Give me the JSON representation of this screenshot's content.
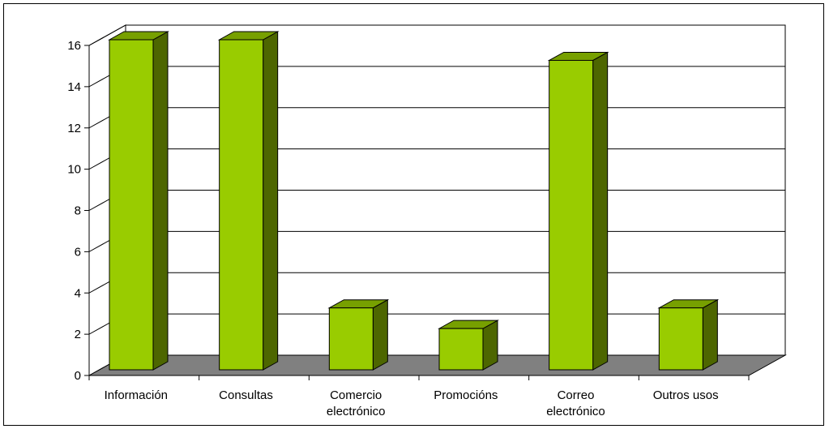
{
  "chart_data": {
    "type": "bar",
    "style": "3d-column",
    "categories": [
      [
        "Información"
      ],
      [
        "Consultas"
      ],
      [
        "Comercio",
        "electrónico"
      ],
      [
        "Promocións"
      ],
      [
        "Correo",
        "electrónico"
      ],
      [
        "Outros usos"
      ]
    ],
    "values": [
      16,
      16,
      3,
      2,
      15,
      3
    ],
    "yticks": [
      "0",
      "2",
      "4",
      "6",
      "8",
      "10",
      "12",
      "14",
      "16"
    ],
    "ylim": [
      0,
      16
    ],
    "title": "",
    "xlabel": "",
    "ylabel": "",
    "grid": true,
    "legend": "none",
    "colors": {
      "bar_front": "#99cc00",
      "bar_top": "#77a000",
      "bar_side": "#4d6600",
      "floor": "#808080",
      "back_wall": "#ffffff",
      "gridline": "#000000"
    }
  }
}
